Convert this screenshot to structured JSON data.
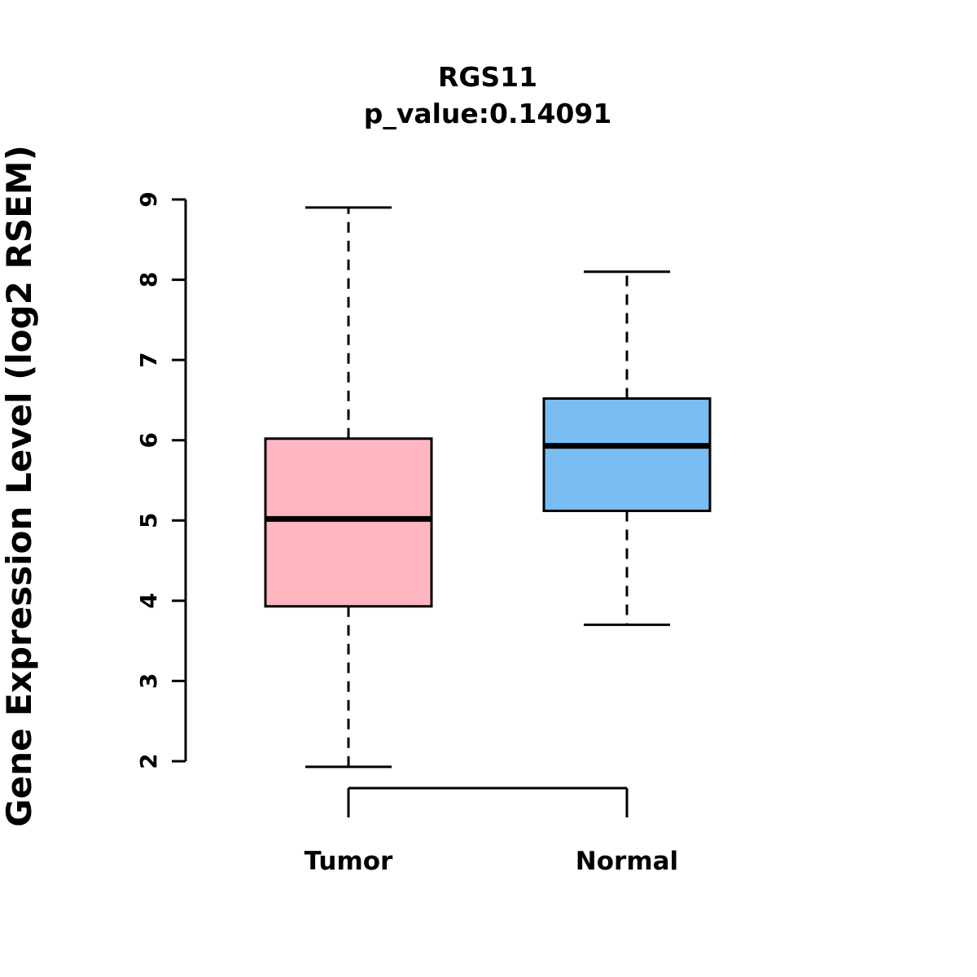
{
  "chart_data": {
    "type": "boxplot",
    "title": "RGS11",
    "subtitle": "p_value:0.14091",
    "gene": "RGS11",
    "p_value": 0.14091,
    "ylabel": "Gene Expression Level (log2 RSEM)",
    "ylim": [
      2,
      9
    ],
    "yticks": [
      2,
      3,
      4,
      5,
      6,
      7,
      8,
      9
    ],
    "grid": false,
    "groups": [
      {
        "label": "Tumor",
        "color": "#FFB6C1",
        "whisker_low": 1.93,
        "q1": 3.93,
        "median": 5.02,
        "q3": 6.02,
        "whisker_high": 8.9
      },
      {
        "label": "Normal",
        "color": "#79BDF2",
        "whisker_low": 3.7,
        "q1": 5.12,
        "median": 5.93,
        "q3": 6.52,
        "whisker_high": 8.1
      }
    ]
  }
}
